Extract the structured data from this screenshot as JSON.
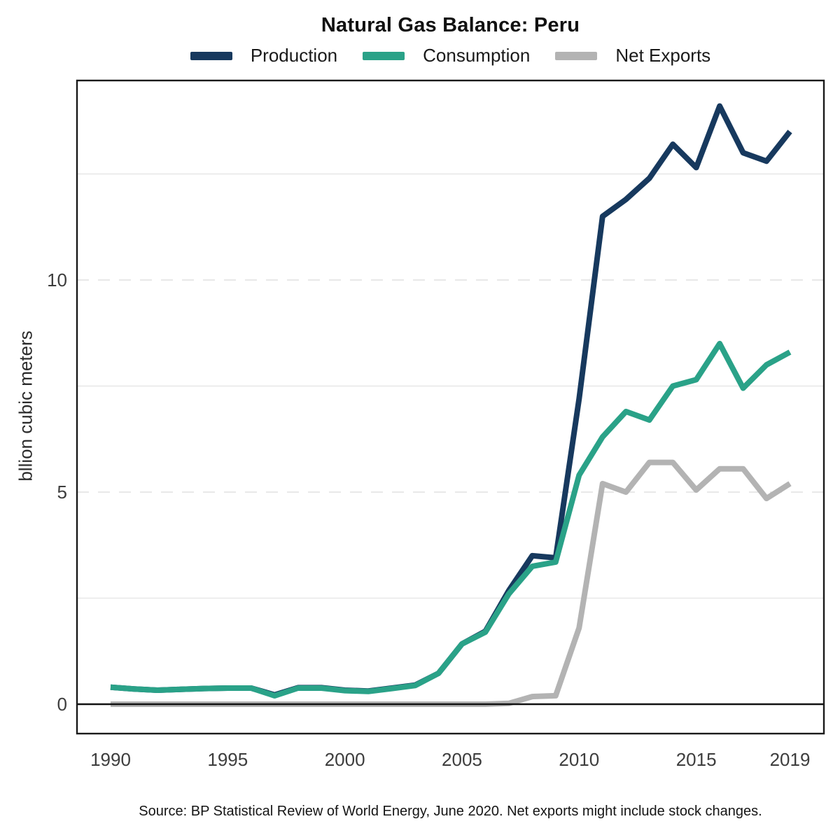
{
  "header": {
    "title": "Natural Gas Balance: Peru"
  },
  "legend": {
    "items": [
      {
        "label": "Production",
        "color": "#17395e"
      },
      {
        "label": "Consumption",
        "color": "#2aa288"
      },
      {
        "label": "Net Exports",
        "color": "#b3b3b3"
      }
    ]
  },
  "axes": {
    "ylabel": "bllion cubic meters",
    "yticks": [
      0,
      5,
      10
    ],
    "xticks": [
      1990,
      1995,
      2000,
      2005,
      2010,
      2015,
      2019
    ]
  },
  "footer": {
    "source": "Source: BP Statistical Review of World Energy, June 2020. Net exports might include stock changes."
  },
  "chart_data": {
    "type": "line",
    "title": "Natural Gas Balance: Peru",
    "xlabel": "",
    "ylabel": "bllion cubic meters",
    "x": [
      1990,
      1991,
      1992,
      1993,
      1994,
      1995,
      1996,
      1997,
      1998,
      1999,
      2000,
      2001,
      2002,
      2003,
      2004,
      2005,
      2006,
      2007,
      2008,
      2009,
      2010,
      2011,
      2012,
      2013,
      2014,
      2015,
      2016,
      2017,
      2018,
      2019
    ],
    "series": [
      {
        "name": "Production",
        "color": "#17395e",
        "values": [
          0.4,
          0.36,
          0.33,
          0.35,
          0.37,
          0.38,
          0.38,
          0.22,
          0.39,
          0.39,
          0.33,
          0.31,
          0.38,
          0.45,
          0.73,
          1.42,
          1.72,
          2.68,
          3.5,
          3.45,
          7.2,
          11.5,
          11.9,
          12.4,
          13.2,
          12.65,
          14.1,
          13.0,
          12.8,
          13.5
        ]
      },
      {
        "name": "Consumption",
        "color": "#2aa288",
        "values": [
          0.4,
          0.36,
          0.33,
          0.35,
          0.37,
          0.38,
          0.38,
          0.2,
          0.38,
          0.38,
          0.32,
          0.3,
          0.37,
          0.44,
          0.73,
          1.42,
          1.7,
          2.6,
          3.25,
          3.35,
          5.4,
          6.3,
          6.9,
          6.7,
          7.5,
          7.65,
          8.5,
          7.45,
          8.0,
          8.3
        ]
      },
      {
        "name": "Net Exports",
        "color": "#b3b3b3",
        "values": [
          0,
          0,
          0,
          0,
          0,
          0,
          0,
          0,
          0,
          0,
          0,
          0,
          0,
          0,
          0,
          0,
          0,
          0.02,
          0.18,
          0.2,
          1.8,
          5.2,
          5.0,
          5.7,
          5.7,
          5.05,
          5.55,
          5.55,
          4.85,
          5.2
        ]
      }
    ],
    "xlim": [
      1990,
      2019
    ],
    "ylim": [
      -0.7,
      14.7
    ],
    "grid": {
      "solid_lines": [
        2.5,
        7.5,
        12.5
      ],
      "dashed_lines": [
        5,
        10
      ],
      "zero_line": 0,
      "grid_on": true
    },
    "legend_position": "top"
  }
}
